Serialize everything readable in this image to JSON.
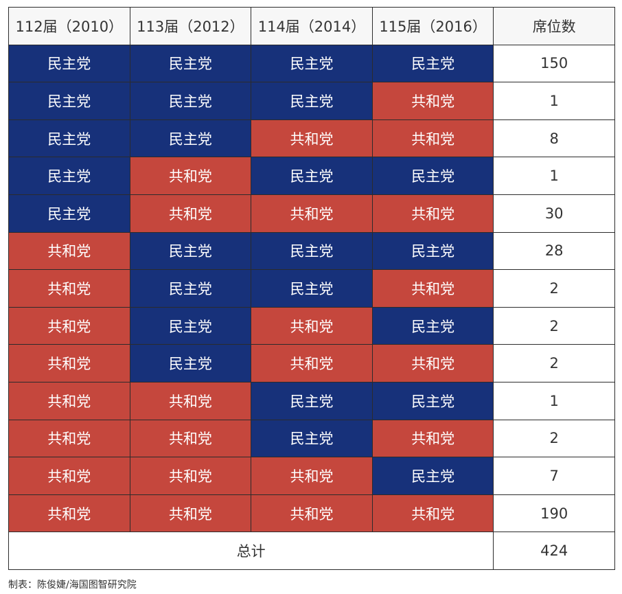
{
  "colors": {
    "民主党": "#17317a",
    "共和党": "#c5473d",
    "header_bg": "#f7f7f7",
    "grid_line": "#2b2b2b"
  },
  "headers": [
    "112届（2010）",
    "113届（2012）",
    "114届（2014）",
    "115届（2016）",
    "席位数"
  ],
  "rows": [
    {
      "parties": [
        "民主党",
        "民主党",
        "民主党",
        "民主党"
      ],
      "seats": "150"
    },
    {
      "parties": [
        "民主党",
        "民主党",
        "民主党",
        "共和党"
      ],
      "seats": "1"
    },
    {
      "parties": [
        "民主党",
        "民主党",
        "共和党",
        "共和党"
      ],
      "seats": "8"
    },
    {
      "parties": [
        "民主党",
        "共和党",
        "民主党",
        "民主党"
      ],
      "seats": "1"
    },
    {
      "parties": [
        "民主党",
        "共和党",
        "共和党",
        "共和党"
      ],
      "seats": "30"
    },
    {
      "parties": [
        "共和党",
        "民主党",
        "民主党",
        "民主党"
      ],
      "seats": "28"
    },
    {
      "parties": [
        "共和党",
        "民主党",
        "民主党",
        "共和党"
      ],
      "seats": "2"
    },
    {
      "parties": [
        "共和党",
        "民主党",
        "共和党",
        "民主党"
      ],
      "seats": "2"
    },
    {
      "parties": [
        "共和党",
        "民主党",
        "共和党",
        "共和党"
      ],
      "seats": "2"
    },
    {
      "parties": [
        "共和党",
        "共和党",
        "民主党",
        "民主党"
      ],
      "seats": "1"
    },
    {
      "parties": [
        "共和党",
        "共和党",
        "民主党",
        "共和党"
      ],
      "seats": "2"
    },
    {
      "parties": [
        "共和党",
        "共和党",
        "共和党",
        "民主党"
      ],
      "seats": "7"
    },
    {
      "parties": [
        "共和党",
        "共和党",
        "共和党",
        "共和党"
      ],
      "seats": "190"
    }
  ],
  "total": {
    "label": "总计",
    "value": "424"
  },
  "footer": "制表：陈俊婕/海国图智研究院"
}
